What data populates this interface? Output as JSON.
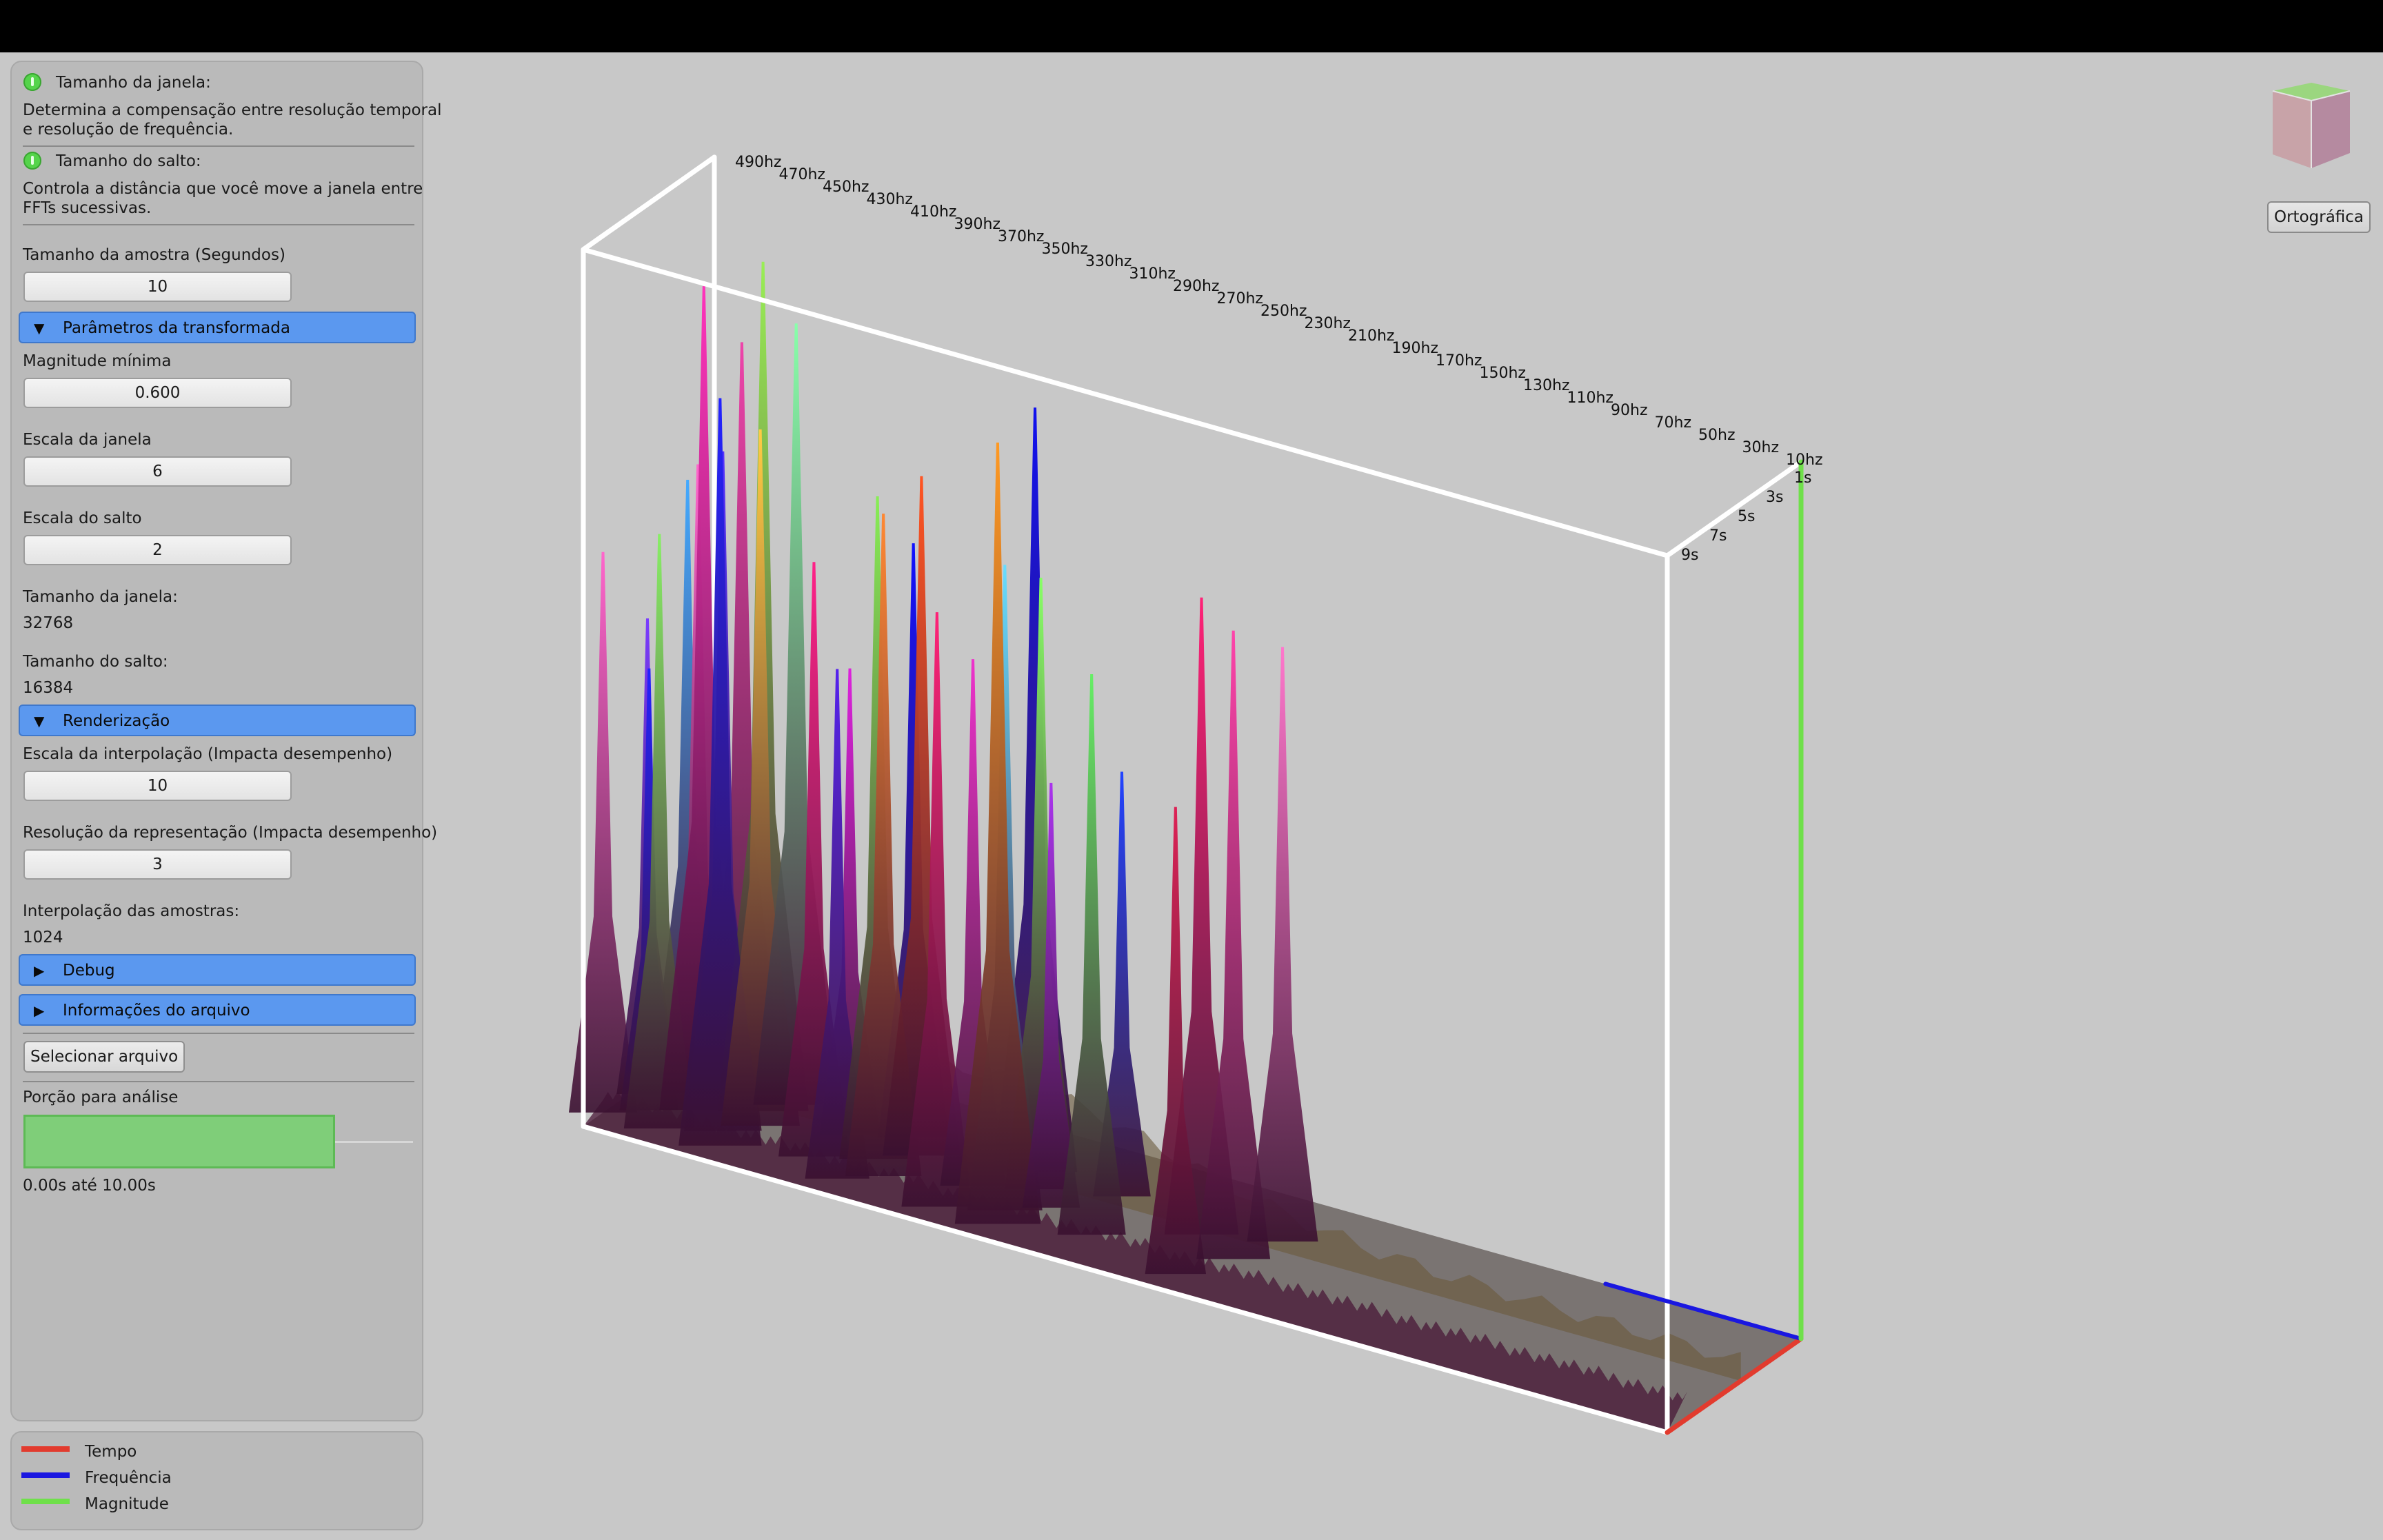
{
  "panel": {
    "window_size_help": {
      "title": "Tamanho da janela:",
      "line1": "Determina a compensação entre resolução temporal",
      "line2": "e resolução de frequência."
    },
    "hop_size_help": {
      "title": "Tamanho do salto:",
      "line1": "Controla a distância que você move a janela entre",
      "line2": "FFTs sucessivas."
    },
    "sample_size": {
      "label": "Tamanho da amostra (Segundos)",
      "value": "10"
    },
    "transform_section": {
      "label": "Parâmetros da transformada",
      "expanded": true
    },
    "min_magnitude": {
      "label": "Magnitude mínima",
      "value": "0.600"
    },
    "window_scale": {
      "label": "Escala da janela",
      "value": "6"
    },
    "hop_scale": {
      "label": "Escala do salto",
      "value": "2"
    },
    "window_size_readout": {
      "label": "Tamanho da janela:",
      "value": "32768"
    },
    "hop_size_readout": {
      "label": "Tamanho do salto:",
      "value": "16384"
    },
    "render_section": {
      "label": "Renderização",
      "expanded": true
    },
    "interp_scale": {
      "label": "Escala da interpolação (Impacta desempenho)",
      "value": "10"
    },
    "repr_resolution": {
      "label": "Resolução da representação (Impacta desempenho)",
      "value": "3"
    },
    "sample_interp": {
      "label": "Interpolação das amostras:",
      "value": "1024"
    },
    "debug_section": {
      "label": "Debug",
      "expanded": false
    },
    "file_info_section": {
      "label": "Informações do arquivo",
      "expanded": false
    },
    "select_file_button": "Selecionar arquivo",
    "analysis_portion": {
      "label": "Porção para análise",
      "fraction": 0.8,
      "range_text": "0.00s até 10.00s"
    }
  },
  "legend": {
    "items": [
      {
        "label": "Tempo",
        "color": "#e23b2e"
      },
      {
        "label": "Frequência",
        "color": "#1a17e0"
      },
      {
        "label": "Magnitude",
        "color": "#6fe04a"
      }
    ]
  },
  "viewport": {
    "projection_button": "Ortográfica",
    "nav_cube": "navigation-cube"
  },
  "chart_data": {
    "type": "3d-spectrogram",
    "title": "",
    "frequency_axis": {
      "ticks": [
        "490hz",
        "470hz",
        "450hz",
        "430hz",
        "410hz",
        "390hz",
        "370hz",
        "350hz",
        "330hz",
        "310hz",
        "290hz",
        "270hz",
        "250hz",
        "230hz",
        "210hz",
        "190hz",
        "170hz",
        "150hz",
        "130hz",
        "110hz",
        "90hz",
        "70hz",
        "50hz",
        "30hz",
        "10hz"
      ],
      "color": "#1a17e0"
    },
    "time_axis": {
      "ticks": [
        "1s",
        "3s",
        "5s",
        "7s",
        "9s"
      ],
      "color": "#e23b2e"
    },
    "magnitude_axis": {
      "color": "#6fe04a"
    },
    "peaks": [
      {
        "frequency_hz": 500,
        "magnitude": 0.66,
        "color": "#ff66cc"
      },
      {
        "frequency_hz": 494,
        "magnitude": 0.56,
        "color": "#7a3cff"
      },
      {
        "frequency_hz": 490,
        "magnitude": 0.7,
        "color": "#44aaff"
      },
      {
        "frequency_hz": 486,
        "magnitude": 0.52,
        "color": "#2222ff"
      },
      {
        "frequency_hz": 478,
        "magnitude": 0.74,
        "color": "#ff66cc"
      },
      {
        "frequency_hz": 474,
        "magnitude": 0.7,
        "color": "#88ee66"
      },
      {
        "frequency_hz": 468,
        "magnitude": 0.97,
        "color": "#ff33bb"
      },
      {
        "frequency_hz": 465,
        "magnitude": 0.88,
        "color": "#ee44aa"
      },
      {
        "frequency_hz": 452,
        "magnitude": 0.8,
        "color": "#5533ff"
      },
      {
        "frequency_hz": 448,
        "magnitude": 1.0,
        "color": "#99ee55"
      },
      {
        "frequency_hz": 446,
        "magnitude": 0.88,
        "color": "#2222ff"
      },
      {
        "frequency_hz": 442,
        "magnitude": 0.82,
        "color": "#ffcc44"
      },
      {
        "frequency_hz": 440,
        "magnitude": 0.92,
        "color": "#88ffaa"
      },
      {
        "frequency_hz": 410,
        "magnitude": 0.7,
        "color": "#ff2288"
      },
      {
        "frequency_hz": 408,
        "magnitude": 0.55,
        "color": "#dd22dd"
      },
      {
        "frequency_hz": 392,
        "magnitude": 0.6,
        "color": "#5522ee"
      },
      {
        "frequency_hz": 388,
        "magnitude": 0.78,
        "color": "#88ee55"
      },
      {
        "frequency_hz": 386,
        "magnitude": 0.7,
        "color": "#1111ff"
      },
      {
        "frequency_hz": 378,
        "magnitude": 0.78,
        "color": "#ff8833"
      },
      {
        "frequency_hz": 375,
        "magnitude": 0.8,
        "color": "#ff5522"
      },
      {
        "frequency_hz": 346,
        "magnitude": 0.7,
        "color": "#ff2277"
      },
      {
        "frequency_hz": 344,
        "magnitude": 0.62,
        "color": "#ee33cc"
      },
      {
        "frequency_hz": 330,
        "magnitude": 0.9,
        "color": "#1111ee"
      },
      {
        "frequency_hz": 322,
        "magnitude": 0.76,
        "color": "#66ddff"
      },
      {
        "frequency_hz": 320,
        "magnitude": 0.72,
        "color": "#88ff66"
      },
      {
        "frequency_hz": 318,
        "magnitude": 0.92,
        "color": "#ff9922"
      },
      {
        "frequency_hz": 308,
        "magnitude": 0.5,
        "color": "#aa33ee"
      },
      {
        "frequency_hz": 290,
        "magnitude": 0.5,
        "color": "#2244ff"
      },
      {
        "frequency_hz": 282,
        "magnitude": 0.66,
        "color": "#66ee66"
      },
      {
        "frequency_hz": 246,
        "magnitude": 0.75,
        "color": "#ff2277"
      },
      {
        "frequency_hz": 236,
        "magnitude": 0.55,
        "color": "#dd2255"
      },
      {
        "frequency_hz": 224,
        "magnitude": 0.74,
        "color": "#ff44aa"
      },
      {
        "frequency_hz": 216,
        "magnitude": 0.7,
        "color": "#ff77cc"
      }
    ]
  }
}
